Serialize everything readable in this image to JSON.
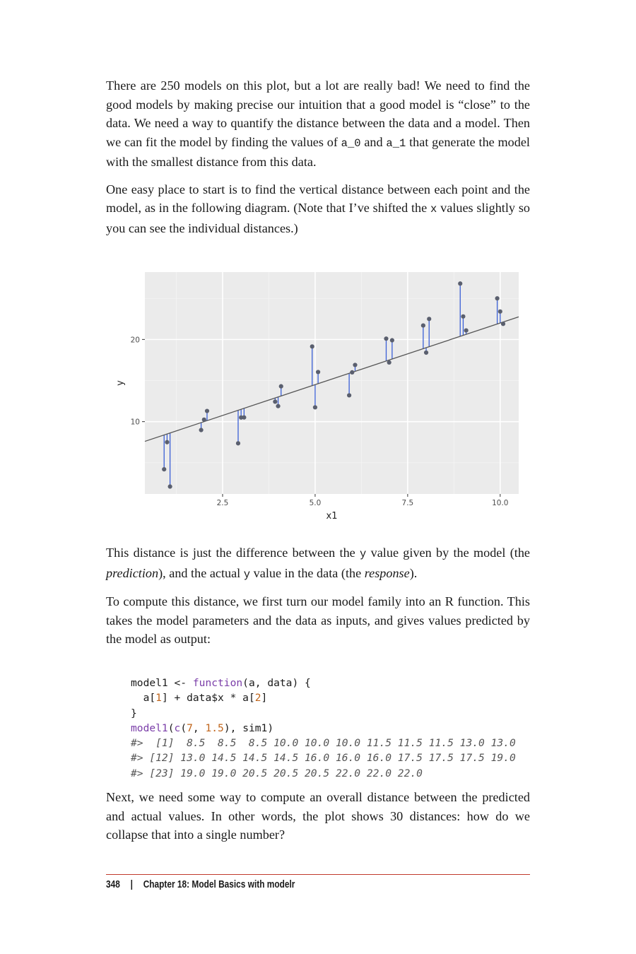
{
  "paragraphs": {
    "p1": {
      "t1": "There are 250 models on this plot, but a lot are really bad! We need to find the good models by making precise our intuition that a good model is “close” to the data. We need a way to quantify the distance between the data and a model. Then we can fit the model by finding the values of ",
      "c1": "a_0",
      "t2": " and ",
      "c2": "a_1",
      "t3": " that generate the model with the smallest distance from this data."
    },
    "p2": {
      "t1": "One easy place to start is to find the vertical distance between each point and the model, as in the following diagram. (Note that I’ve shifted the ",
      "c1": "x",
      "t2": " values slightly so you can see the individual distances.)"
    },
    "p3": {
      "t1": "This distance is just the difference between the ",
      "c1": "y",
      "t2": " value given by the model (the ",
      "e1": "prediction",
      "t3": "), and the actual ",
      "c2": "y",
      "t4": " value in the data (the ",
      "e2": "response",
      "t5": ")."
    },
    "p4": {
      "t1": "To compute this distance, we first turn our model family into an R function. This takes the model parameters and the data as inputs, and gives values predicted by the model as output:"
    },
    "p5": {
      "t1": "Next, we need some way to compute an overall distance between the predicted and actual values. In other words, the plot shows 30 distances: how do we collapse that into a single number?"
    }
  },
  "code": {
    "line1": {
      "a": "model1 <- ",
      "kw": "function",
      "b": "(a, data) {"
    },
    "line2": {
      "a": "  a[",
      "n1": "1",
      "b": "] + data$x * a[",
      "n2": "2",
      "c": "]"
    },
    "line3": {
      "a": "}"
    },
    "line4": {
      "kw": "model1",
      "a": "(",
      "f": "c",
      "b": "(",
      "n1": "7",
      "c": ", ",
      "n2": "1.5",
      "d": "), sim1)"
    },
    "out1": "#>  [1]  8.5  8.5  8.5 10.0 10.0 10.0 11.5 11.5 11.5 13.0 13.0",
    "out2": "#> [12] 13.0 14.5 14.5 14.5 16.0 16.0 16.0 17.5 17.5 17.5 19.0",
    "out3": "#> [23] 19.0 19.0 20.5 20.5 20.5 22.0 22.0 22.0"
  },
  "footer": {
    "page_number": "348",
    "separator": "|",
    "chapter": "Chapter 18: Model Basics with modelr"
  },
  "chart_data": {
    "type": "scatter",
    "xlabel": "x1",
    "ylabel": "y",
    "xlim": [
      0.4,
      10.5
    ],
    "ylim": [
      1.2,
      28.2
    ],
    "xticks": [
      2.5,
      5.0,
      7.5,
      10.0
    ],
    "xtick_labels": [
      "2.5",
      "5.0",
      "7.5",
      "10.0"
    ],
    "yticks": [
      10,
      20
    ],
    "ytick_labels": [
      "10",
      "20"
    ],
    "grid": true,
    "model": {
      "intercept": 7,
      "slope": 1.5
    },
    "points": [
      {
        "x": 0.92,
        "y": 4.2
      },
      {
        "x": 1.0,
        "y": 7.5
      },
      {
        "x": 1.08,
        "y": 2.1
      },
      {
        "x": 1.92,
        "y": 8.98
      },
      {
        "x": 2.0,
        "y": 10.24
      },
      {
        "x": 2.08,
        "y": 11.3
      },
      {
        "x": 2.92,
        "y": 7.36
      },
      {
        "x": 3.0,
        "y": 10.5
      },
      {
        "x": 3.08,
        "y": 10.51
      },
      {
        "x": 3.92,
        "y": 12.43
      },
      {
        "x": 4.0,
        "y": 11.89
      },
      {
        "x": 4.08,
        "y": 14.3
      },
      {
        "x": 4.92,
        "y": 19.14
      },
      {
        "x": 5.0,
        "y": 11.74
      },
      {
        "x": 5.08,
        "y": 16.04
      },
      {
        "x": 5.92,
        "y": 13.2
      },
      {
        "x": 6.0,
        "y": 16.0
      },
      {
        "x": 6.08,
        "y": 16.9
      },
      {
        "x": 6.92,
        "y": 20.1
      },
      {
        "x": 7.0,
        "y": 17.2
      },
      {
        "x": 7.08,
        "y": 19.9
      },
      {
        "x": 7.92,
        "y": 21.7
      },
      {
        "x": 8.0,
        "y": 18.4
      },
      {
        "x": 8.08,
        "y": 22.5
      },
      {
        "x": 8.92,
        "y": 26.8
      },
      {
        "x": 9.0,
        "y": 22.8
      },
      {
        "x": 9.08,
        "y": 21.1
      },
      {
        "x": 9.92,
        "y": 25.0
      },
      {
        "x": 10.0,
        "y": 23.4
      },
      {
        "x": 10.08,
        "y": 21.9
      }
    ],
    "colors": {
      "panel": "#ebebeb",
      "grid_major": "#ffffff",
      "grid_minor": "#f4f4f4",
      "point": "#5a5f6e",
      "residual": "#3a5fd6",
      "model_line": "#555555",
      "tick_text": "#4d4d4d"
    }
  }
}
